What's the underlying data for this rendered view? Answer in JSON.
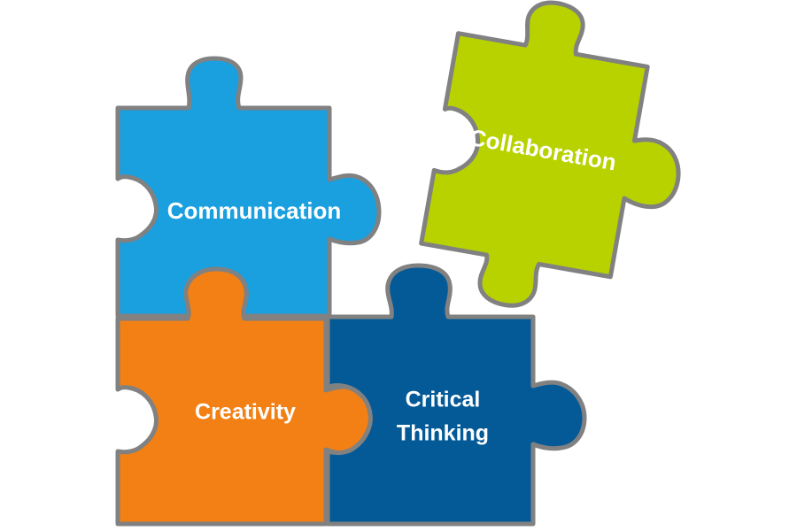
{
  "pieces": [
    {
      "id": "communication",
      "lines": [
        "Communication"
      ],
      "color": "#1a9fdf"
    },
    {
      "id": "collaboration",
      "lines": [
        "Collaboration"
      ],
      "color": "#b8d200"
    },
    {
      "id": "creativity",
      "lines": [
        "Creativity"
      ],
      "color": "#f28014"
    },
    {
      "id": "critical-thinking",
      "lines": [
        "Critical",
        "Thinking"
      ],
      "color": "#045a97"
    }
  ],
  "outline_color": "#818181"
}
